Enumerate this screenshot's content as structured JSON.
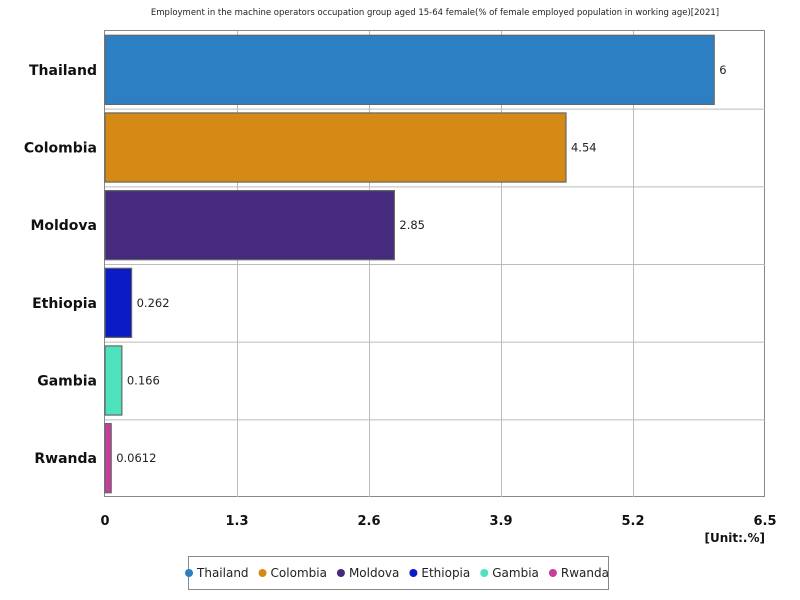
{
  "chart_data": {
    "type": "bar",
    "orientation": "horizontal",
    "title": "Employment in the machine operators occupation group aged 15-64 female(% of female employed population in working age)[2021]",
    "categories": [
      "Thailand",
      "Colombia",
      "Moldova",
      "Ethiopia",
      "Gambia",
      "Rwanda"
    ],
    "values": [
      6,
      4.54,
      2.85,
      0.262,
      0.166,
      0.0612
    ],
    "value_labels": [
      "6",
      "4.54",
      "2.85",
      "0.262",
      "0.166",
      "0.0612"
    ],
    "colors": [
      "#2b7fc2",
      "#d58a16",
      "#452a7e",
      "#0b1bc5",
      "#4fe3bd",
      "#c63d9c"
    ],
    "xlim": [
      0,
      6.5
    ],
    "xticks": [
      "0",
      "1.3",
      "2.6",
      "3.9",
      "5.2",
      "6.5"
    ],
    "unit_label": "[Unit:.%]",
    "legend": [
      "Thailand",
      "Colombia",
      "Moldova",
      "Ethiopia",
      "Gambia",
      "Rwanda"
    ],
    "legend_position": "bottom-center",
    "grid": true
  }
}
